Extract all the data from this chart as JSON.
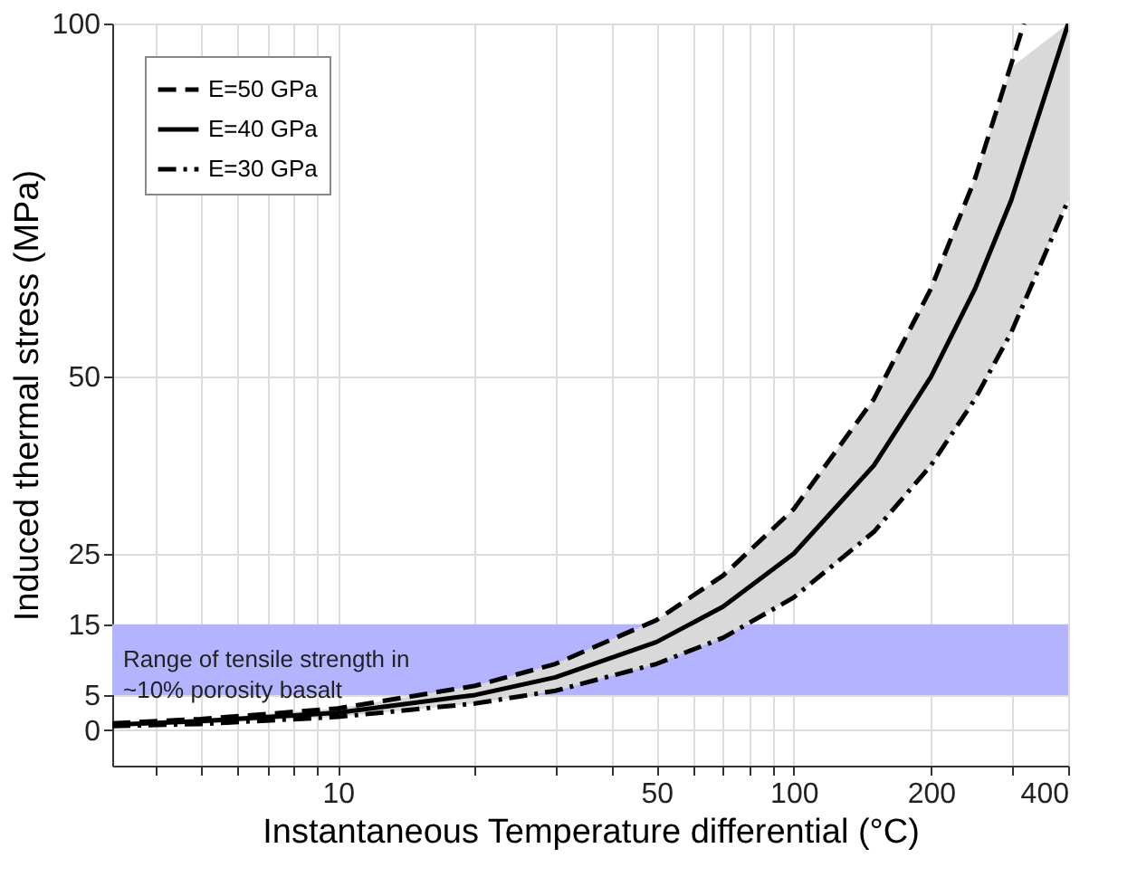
{
  "chart_data": {
    "type": "line",
    "xlabel": "Instantaneous Temperature differential (°C)",
    "ylabel": "Induced thermal stress (MPa)",
    "log": "x",
    "xlim": [
      3.2,
      400
    ],
    "ylim": [
      -5,
      100
    ],
    "xticks": [
      {
        "value": 4,
        "label": null
      },
      {
        "value": 5,
        "label": null
      },
      {
        "value": 6,
        "label": null
      },
      {
        "value": 7,
        "label": null
      },
      {
        "value": 8,
        "label": null
      },
      {
        "value": 9,
        "label": null
      },
      10,
      {
        "value": 20,
        "label": null
      },
      {
        "value": 30,
        "label": null
      },
      {
        "value": 40,
        "label": null
      },
      50,
      {
        "value": 60,
        "label": null
      },
      {
        "value": 70,
        "label": null
      },
      {
        "value": 80,
        "label": null
      },
      {
        "value": 90,
        "label": null
      },
      100,
      200,
      {
        "value": 300,
        "label": null
      },
      400
    ],
    "yticks": [
      0,
      5,
      15,
      25,
      50,
      100
    ],
    "grid": true,
    "legend": "top left",
    "series": [
      {
        "name": "E=50 GPa",
        "color": "#000000",
        "line_style": "dashed",
        "x": [
          3.2,
          5,
          10,
          20,
          30,
          50,
          70,
          100,
          150,
          200,
          250,
          320
        ],
        "values": [
          1.0,
          1.6,
          3.1,
          6.3,
          9.4,
          15.6,
          21.9,
          31.3,
          46.9,
          62.5,
          78.1,
          100
        ]
      },
      {
        "name": "E=40 GPa",
        "color": "#000000",
        "line_style": "solid",
        "x": [
          3.2,
          5,
          10,
          20,
          30,
          50,
          70,
          100,
          150,
          200,
          250,
          300,
          400
        ],
        "values": [
          0.8,
          1.3,
          2.5,
          5,
          7.5,
          12.5,
          17.5,
          25,
          37.5,
          50,
          62.5,
          75,
          100
        ],
        "lower": [
          0.6,
          0.9,
          1.9,
          3.8,
          5.6,
          9.4,
          13.1,
          18.8,
          28.1,
          37.5,
          46.9,
          56.3,
          75
        ],
        "upper": [
          1.0,
          1.6,
          3.1,
          6.3,
          9.4,
          15.6,
          21.9,
          31.3,
          46.9,
          62.5,
          78.1,
          93.8,
          100
        ]
      },
      {
        "name": "E=30 GPa",
        "color": "#000000",
        "line_style": "dashdot",
        "x": [
          3.2,
          5,
          10,
          20,
          30,
          50,
          70,
          100,
          150,
          200,
          250,
          300,
          400
        ],
        "values": [
          0.6,
          0.9,
          1.9,
          3.8,
          5.6,
          9.4,
          13.1,
          18.8,
          28.1,
          37.5,
          46.9,
          56.3,
          75
        ]
      }
    ],
    "bands": [
      {
        "axis": "y",
        "from": 5,
        "to": 15,
        "label": "Range of tensile strength in\n~10% porosity basalt",
        "color": "#b3b3ff"
      }
    ]
  }
}
